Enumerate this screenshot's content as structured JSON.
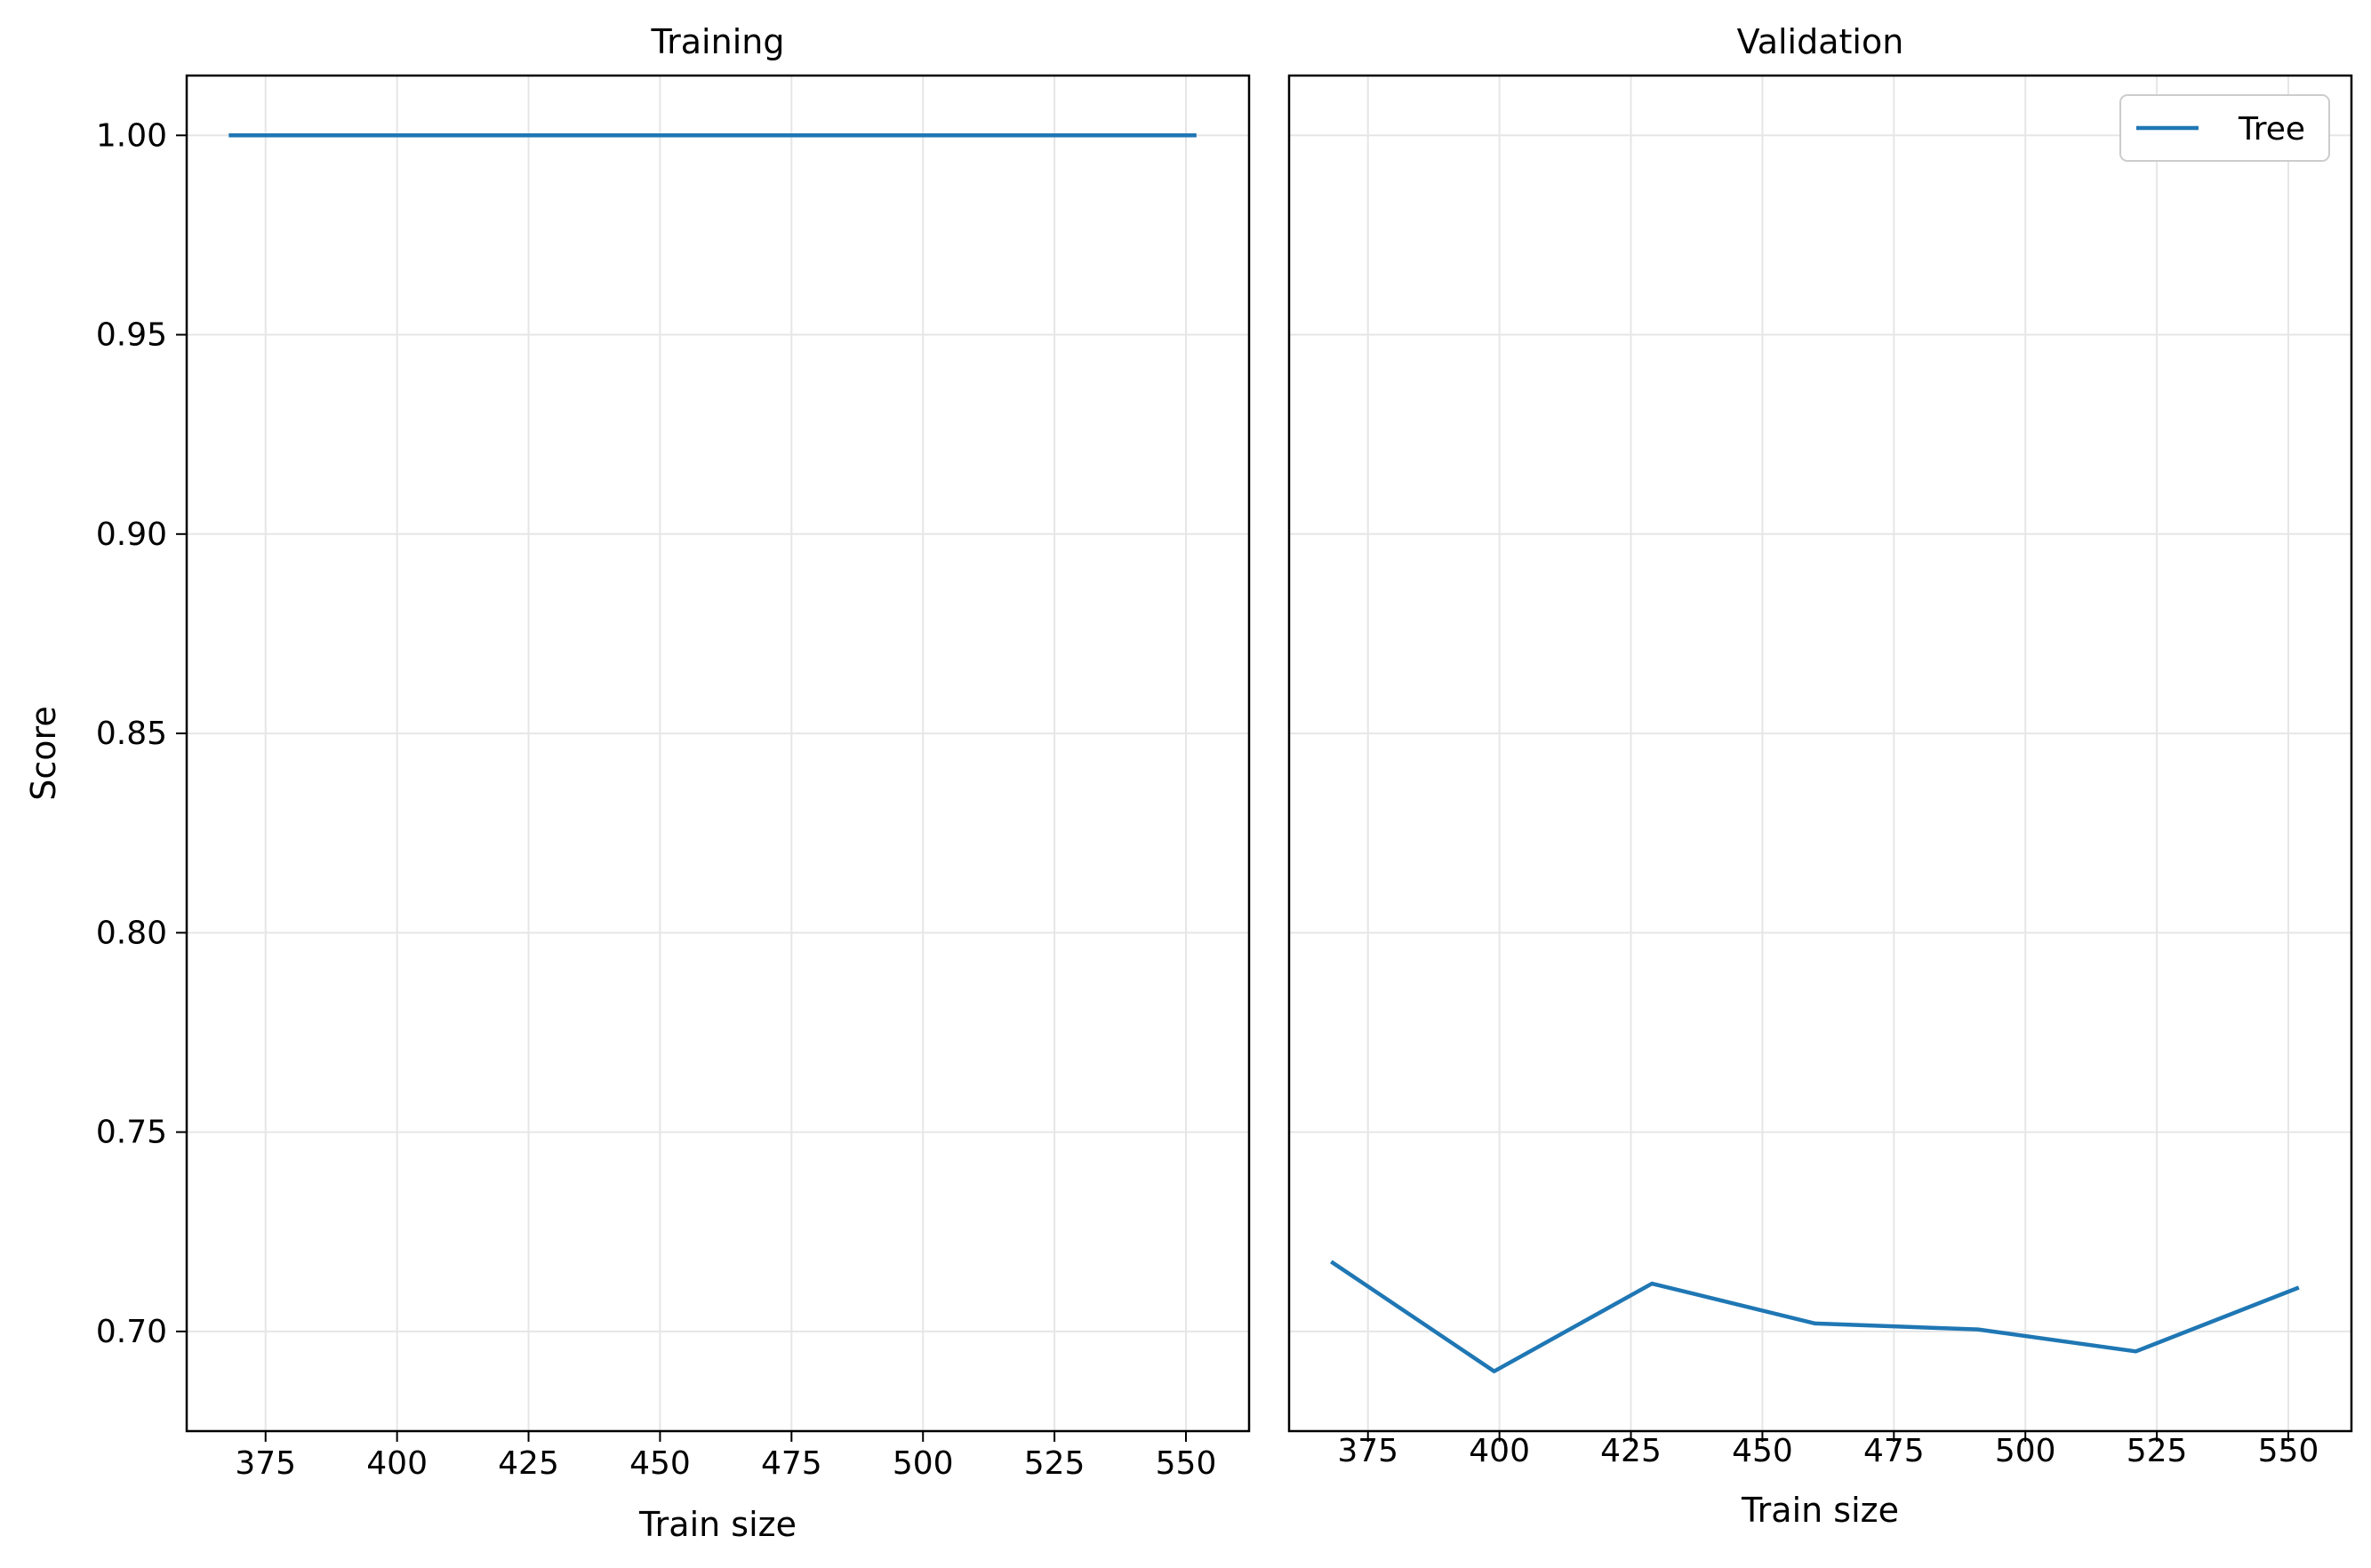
{
  "chart_data": [
    {
      "type": "line",
      "title": "Training",
      "xlabel": "Train size",
      "ylabel": "Score",
      "xlim": [
        360,
        562
      ],
      "ylim": [
        0.675,
        1.015
      ],
      "xticks": [
        375,
        400,
        425,
        450,
        475,
        500,
        525,
        550
      ],
      "yticks": [
        0.7,
        0.75,
        0.8,
        0.85,
        0.9,
        0.95,
        1.0
      ],
      "grid": true,
      "color": "#1f77b4",
      "series": [
        {
          "x": [
            368,
            552
          ],
          "y": [
            1.0,
            1.0
          ]
        }
      ]
    },
    {
      "type": "line",
      "title": "Validation",
      "xlabel": "Train size",
      "ylabel": "",
      "xlim": [
        360,
        562
      ],
      "ylim": [
        0.675,
        1.015
      ],
      "xticks": [
        375,
        400,
        425,
        450,
        475,
        500,
        525,
        550
      ],
      "yticks": [
        0.7,
        0.75,
        0.8,
        0.85,
        0.9,
        0.95,
        1.0
      ],
      "grid": true,
      "legend": "top-right",
      "color": "#1f77b4",
      "series": [
        {
          "name": "Tree",
          "x": [
            368,
            399,
            429,
            460,
            491,
            521,
            552
          ],
          "y": [
            0.7175,
            0.69,
            0.712,
            0.702,
            0.7005,
            0.695,
            0.711
          ]
        }
      ]
    }
  ]
}
